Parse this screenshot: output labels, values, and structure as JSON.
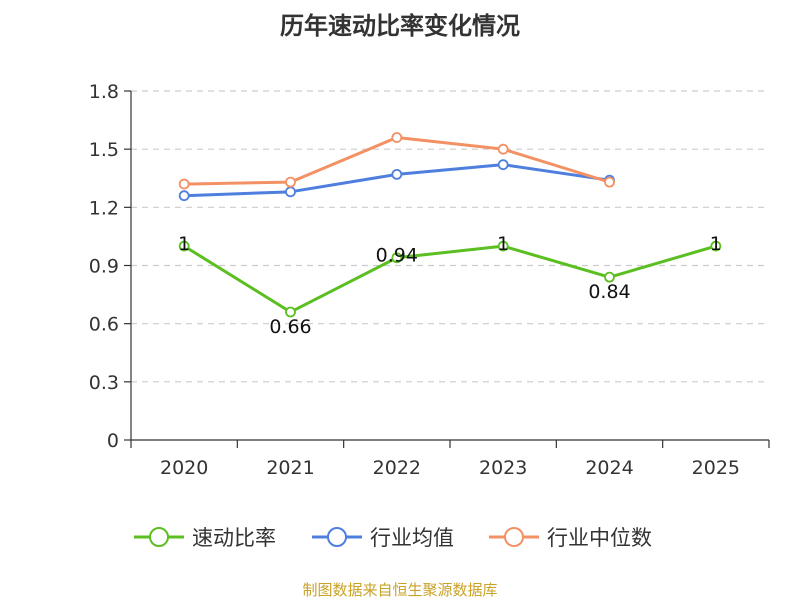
{
  "chart_data": {
    "type": "line",
    "title": "历年速动比率变化情况",
    "categories": [
      "2020",
      "2021",
      "2022",
      "2023",
      "2024",
      "2025"
    ],
    "ylim": [
      0,
      1.8
    ],
    "yticks": [
      0,
      0.3,
      0.6,
      0.9,
      1.2,
      1.5,
      1.8
    ],
    "ytick_labels": [
      "0",
      "0.3",
      "0.6",
      "0.9",
      "1.2",
      "1.5",
      "1.8"
    ],
    "grid": true,
    "legend_position": "bottom",
    "series": [
      {
        "name": "速动比率",
        "color": "#5bbf21",
        "values": [
          1,
          0.66,
          0.94,
          1,
          0.84,
          1
        ],
        "labels": [
          "1",
          "0.66",
          "0.94",
          "1",
          "0.84",
          "1"
        ],
        "show_labels": true
      },
      {
        "name": "行业均值",
        "color": "#4e7fde",
        "values": [
          1.26,
          1.28,
          1.37,
          1.42,
          1.34,
          null
        ],
        "show_labels": false
      },
      {
        "name": "行业中位数",
        "color": "#f39164",
        "values": [
          1.32,
          1.33,
          1.56,
          1.5,
          1.33,
          null
        ],
        "show_labels": false
      }
    ]
  },
  "source_text": "制图数据来自恒生聚源数据库"
}
